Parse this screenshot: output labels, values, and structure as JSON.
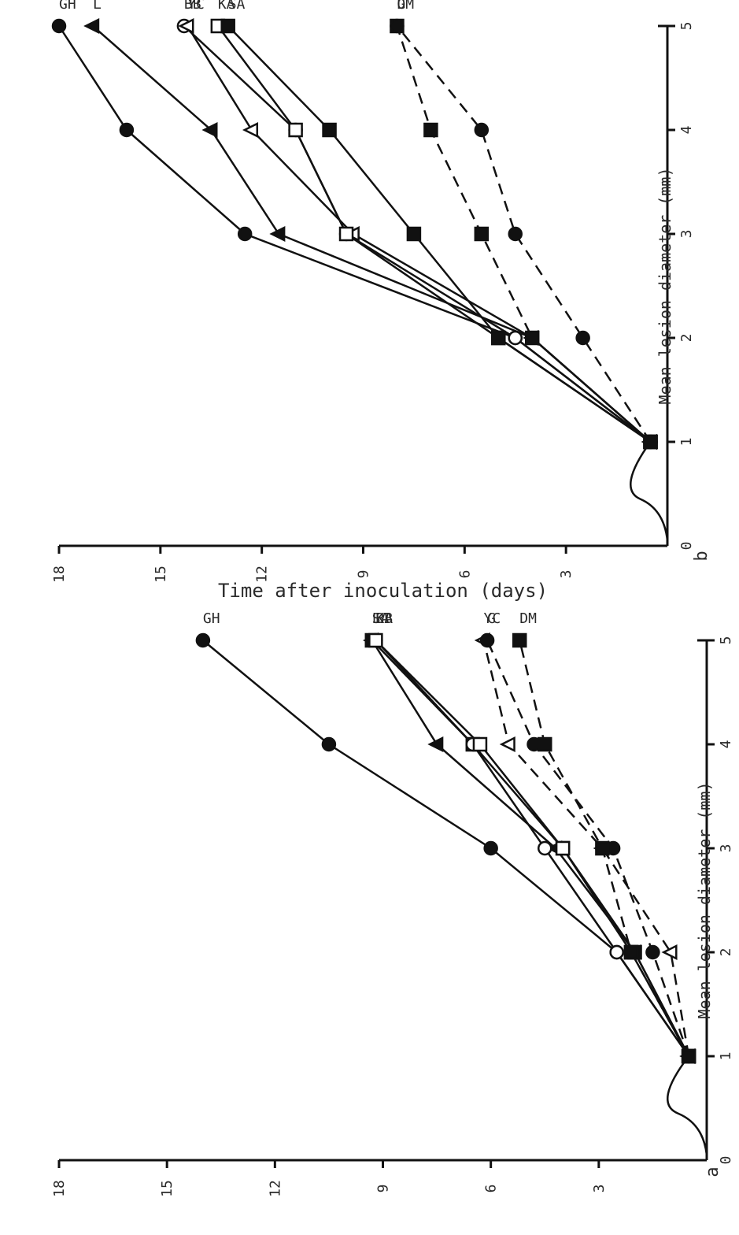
{
  "chart_data": [
    {
      "panel_label": "a",
      "type": "line",
      "xlabel": "Time after inoculation (days)",
      "ylabel": "Mean lesion diameter (mm)",
      "xlim": [
        0,
        5
      ],
      "ylim": [
        0,
        18
      ],
      "xticks": [
        0,
        1,
        2,
        3,
        4,
        5
      ],
      "yticks": [
        3,
        6,
        9,
        12,
        15,
        18
      ],
      "x": [
        1,
        2,
        3,
        4,
        5
      ],
      "series": [
        {
          "name": "GH",
          "marker": "filled-circle",
          "dashed": false,
          "values": [
            0.5,
            2.5,
            6.0,
            10.5,
            14.0
          ]
        },
        {
          "name": "SA",
          "marker": "filled-square",
          "dashed": false,
          "values": [
            0.5,
            2.0,
            4.0,
            6.5,
            9.3
          ]
        },
        {
          "name": "L",
          "marker": "filled-triangle",
          "dashed": false,
          "values": [
            0.5,
            2.0,
            4.2,
            7.5,
            9.3
          ]
        },
        {
          "name": "BB",
          "marker": "open-circle",
          "dashed": false,
          "values": [
            0.5,
            2.5,
            4.5,
            6.5,
            9.2
          ]
        },
        {
          "name": "KA",
          "marker": "open-square",
          "dashed": false,
          "values": [
            0.5,
            2.1,
            4.0,
            6.3,
            9.2
          ]
        },
        {
          "name": "YC",
          "marker": "open-triangle",
          "dashed": true,
          "values": [
            0.5,
            1.0,
            2.9,
            5.5,
            6.2
          ]
        },
        {
          "name": "G",
          "marker": "filled-circle",
          "dashed": true,
          "values": [
            0.5,
            1.5,
            2.6,
            4.8,
            6.1
          ]
        },
        {
          "name": "DM",
          "marker": "filled-square",
          "dashed": true,
          "values": [
            0.5,
            2.1,
            2.9,
            4.5,
            5.2
          ]
        }
      ]
    },
    {
      "panel_label": "b",
      "type": "line",
      "xlabel": "Time after inoculation (days)",
      "ylabel": "Mean lesion diameter (mm)",
      "xlim": [
        0,
        5
      ],
      "ylim": [
        0,
        18
      ],
      "xticks": [
        0,
        1,
        2,
        3,
        4,
        5
      ],
      "yticks": [
        3,
        6,
        9,
        12,
        15,
        18
      ],
      "x": [
        1,
        2,
        3,
        4,
        5
      ],
      "series": [
        {
          "name": "GH",
          "marker": "filled-circle",
          "dashed": false,
          "values": [
            0.5,
            4.5,
            12.5,
            16.0,
            18.0
          ]
        },
        {
          "name": "L",
          "marker": "filled-triangle",
          "dashed": false,
          "values": [
            0.5,
            4.0,
            11.5,
            13.5,
            17.0
          ]
        },
        {
          "name": "BB",
          "marker": "open-circle",
          "dashed": false,
          "values": [
            0.5,
            4.5,
            9.5,
            11.0,
            14.3
          ]
        },
        {
          "name": "YC",
          "marker": "open-triangle",
          "dashed": false,
          "values": [
            0.5,
            4.0,
            9.3,
            12.3,
            14.2
          ]
        },
        {
          "name": "KA",
          "marker": "open-square",
          "dashed": false,
          "values": [
            0.5,
            5.0,
            9.5,
            11.0,
            13.3
          ]
        },
        {
          "name": "SA",
          "marker": "filled-square",
          "dashed": false,
          "values": [
            0.5,
            5.0,
            7.5,
            10.0,
            13.0
          ]
        },
        {
          "name": "DM",
          "marker": "filled-square",
          "dashed": true,
          "values": [
            0.5,
            4.0,
            5.5,
            7.0,
            8.0
          ]
        },
        {
          "name": "G",
          "marker": "filled-circle",
          "dashed": true,
          "values": [
            0.5,
            2.5,
            4.5,
            5.5,
            8.0
          ]
        }
      ]
    }
  ]
}
